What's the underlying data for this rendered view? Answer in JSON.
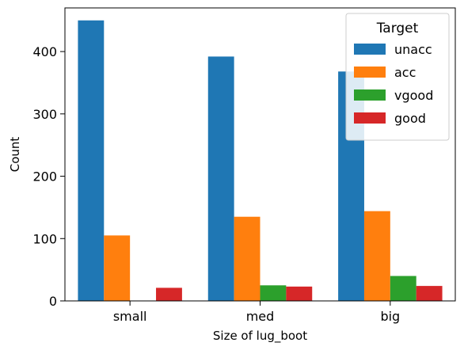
{
  "chart_data": {
    "type": "bar",
    "xlabel": "Size of lug_boot",
    "ylabel": "Count",
    "categories": [
      "small",
      "med",
      "big"
    ],
    "ylim": [
      0,
      470
    ],
    "yticks": [
      0,
      100,
      200,
      300,
      400
    ],
    "grid": false,
    "legend": {
      "title": "Target",
      "placement": "top-right"
    },
    "series": [
      {
        "name": "unacc",
        "color": "#1f77b4",
        "values": [
          450,
          392,
          368
        ]
      },
      {
        "name": "acc",
        "color": "#ff7f0e",
        "values": [
          105,
          135,
          144
        ]
      },
      {
        "name": "vgood",
        "color": "#2ca02c",
        "values": [
          0,
          25,
          40
        ]
      },
      {
        "name": "good",
        "color": "#d62728",
        "values": [
          21,
          23,
          24
        ]
      }
    ]
  }
}
